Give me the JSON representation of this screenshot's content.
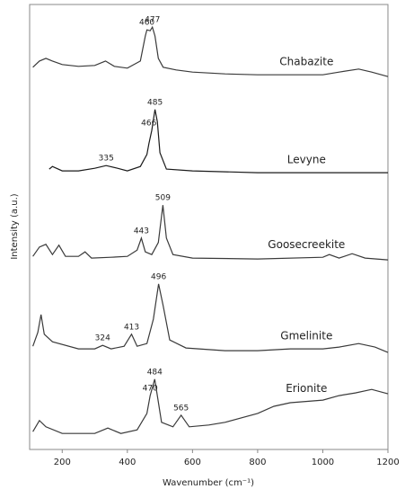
{
  "chart_data": {
    "type": "line",
    "xlabel": "Wavenumber (cm⁻¹)",
    "ylabel": "Intensity (a.u.)",
    "xlim": [
      100,
      1200
    ],
    "xticks": [
      200,
      400,
      600,
      800,
      1000,
      1200
    ],
    "ylim": [
      0,
      100
    ],
    "series": [
      {
        "name": "Chabazite",
        "color": "#3a3a3a",
        "peaks": [
          460,
          477
        ],
        "x": [
          110,
          130,
          150,
          170,
          200,
          250,
          300,
          333,
          360,
          400,
          440,
          455,
          460,
          470,
          477,
          485,
          495,
          510,
          550,
          600,
          700,
          800,
          900,
          1000,
          1050,
          1110,
          1150,
          1200
        ],
        "values": [
          85.9,
          87.3,
          87.9,
          87.3,
          86.5,
          86.1,
          86.3,
          87.3,
          86.1,
          85.7,
          87.3,
          92.9,
          94.3,
          94.1,
          94.9,
          92.9,
          87.9,
          85.9,
          85.3,
          84.8,
          84.4,
          84.2,
          84.2,
          84.2,
          84.8,
          85.5,
          84.8,
          83.8
        ]
      },
      {
        "name": "Levyne",
        "color": "#1a1a1a",
        "peaks": [
          335,
          466,
          485
        ],
        "x": [
          160,
          170,
          200,
          250,
          300,
          335,
          370,
          400,
          440,
          460,
          466,
          475,
          485,
          492,
          500,
          520,
          600,
          800,
          1000,
          1200
        ],
        "values": [
          63.0,
          63.6,
          62.6,
          62.6,
          63.2,
          63.8,
          63.2,
          62.6,
          63.6,
          66.3,
          68.7,
          71.7,
          76.4,
          73.7,
          66.7,
          63.0,
          62.6,
          62.2,
          62.2,
          62.2
        ]
      },
      {
        "name": "Goosecreekite",
        "color": "#3a3a3a",
        "peaks": [
          443,
          509
        ],
        "x": [
          110,
          130,
          150,
          170,
          190,
          210,
          250,
          270,
          290,
          350,
          400,
          430,
          443,
          455,
          475,
          495,
          509,
          520,
          540,
          600,
          800,
          1000,
          1020,
          1050,
          1090,
          1130,
          1200
        ],
        "values": [
          43.4,
          45.5,
          46.1,
          43.8,
          45.9,
          43.4,
          43.4,
          44.4,
          43.0,
          43.2,
          43.4,
          44.8,
          47.5,
          44.4,
          43.8,
          46.5,
          54.9,
          47.5,
          43.8,
          43.0,
          42.8,
          43.2,
          43.8,
          43.0,
          44.0,
          43.0,
          42.6
        ]
      },
      {
        "name": "Gmelinite",
        "color": "#3a3a3a",
        "peaks": [
          324,
          413,
          496
        ],
        "x": [
          110,
          125,
          135,
          145,
          170,
          250,
          300,
          324,
          350,
          390,
          413,
          430,
          460,
          480,
          496,
          510,
          530,
          580,
          700,
          800,
          900,
          1000,
          1050,
          1110,
          1160,
          1200
        ],
        "values": [
          23.2,
          26.3,
          30.3,
          25.9,
          24.2,
          22.6,
          22.6,
          23.4,
          22.6,
          23.2,
          25.9,
          23.2,
          23.8,
          29.3,
          37.2,
          32.3,
          24.6,
          22.8,
          22.2,
          22.2,
          22.6,
          22.6,
          23.0,
          23.8,
          23.0,
          21.8
        ]
      },
      {
        "name": "Erionite",
        "color": "#3a3a3a",
        "peaks": [
          470,
          484,
          565
        ],
        "x": [
          110,
          130,
          150,
          200,
          300,
          340,
          380,
          430,
          460,
          470,
          484,
          492,
          505,
          540,
          565,
          590,
          650,
          700,
          800,
          850,
          900,
          1000,
          1050,
          1100,
          1150,
          1200
        ],
        "values": [
          4.0,
          6.5,
          5.1,
          3.6,
          3.6,
          4.8,
          3.6,
          4.4,
          8.1,
          12.1,
          15.8,
          12.1,
          6.1,
          5.1,
          7.7,
          5.1,
          5.5,
          6.1,
          8.1,
          9.7,
          10.5,
          11.1,
          12.1,
          12.7,
          13.5,
          12.5
        ]
      }
    ]
  }
}
